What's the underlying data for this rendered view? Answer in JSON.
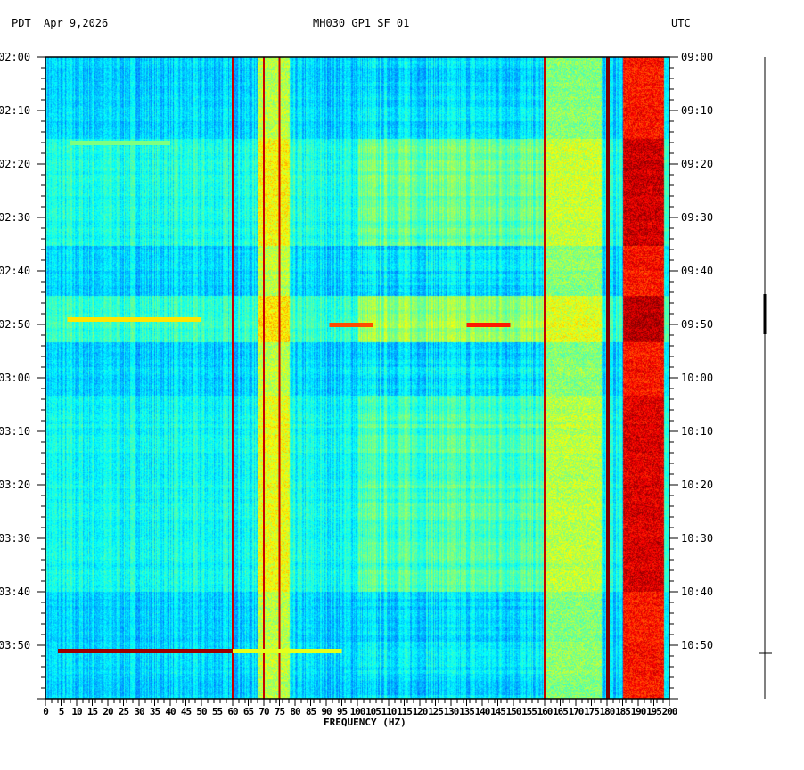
{
  "header": {
    "left_tz": "PDT",
    "date": "Apr 9,2026",
    "station": "MH030 GP1 SF 01",
    "right_tz": "UTC"
  },
  "chart_data": {
    "type": "heatmap",
    "title": "MH030 GP1 SF 01",
    "xlabel": "FREQUENCY (HZ)",
    "xlim": [
      0,
      200
    ],
    "x_ticks": [
      "0",
      "5",
      "10",
      "15",
      "20",
      "25",
      "30",
      "35",
      "40",
      "45",
      "50",
      "55",
      "60",
      "65",
      "70",
      "75",
      "80",
      "85",
      "90",
      "95",
      "100",
      "105",
      "110",
      "115",
      "120",
      "125",
      "130",
      "135",
      "140",
      "145",
      "150",
      "155",
      "160",
      "165",
      "170",
      "175",
      "180",
      "185",
      "190",
      "195",
      "200"
    ],
    "y_left_ticks": [
      "02:00",
      "02:10",
      "02:20",
      "02:30",
      "02:40",
      "02:50",
      "03:00",
      "03:10",
      "03:20",
      "03:30",
      "03:40",
      "03:50"
    ],
    "y_right_ticks": [
      "09:00",
      "09:10",
      "09:20",
      "09:30",
      "09:40",
      "09:50",
      "10:00",
      "10:10",
      "10:20",
      "10:30",
      "10:40",
      "10:50"
    ],
    "time_span_minutes": 120,
    "colormap": "jet",
    "persistent_lines_hz": [
      60,
      70,
      75,
      160,
      180
    ],
    "bands": [
      {
        "from_hz": 68,
        "to_hz": 78,
        "level": 0.55
      },
      {
        "from_hz": 160,
        "to_hz": 178,
        "level": 0.5
      },
      {
        "from_hz": 185,
        "to_hz": 198,
        "level": 0.85
      }
    ],
    "events": [
      {
        "minute": 16,
        "from_hz": 8,
        "to_hz": 40,
        "level": 0.5
      },
      {
        "minute": 49,
        "from_hz": 7,
        "to_hz": 50,
        "level": 0.65
      },
      {
        "minute": 50,
        "from_hz": 91,
        "to_hz": 105,
        "level": 0.8
      },
      {
        "minute": 50,
        "from_hz": 135,
        "to_hz": 149,
        "level": 0.85
      },
      {
        "minute": 111,
        "from_hz": 4,
        "to_hz": 60,
        "level": 0.97
      },
      {
        "minute": 111,
        "from_hz": 60,
        "to_hz": 95,
        "level": 0.6
      }
    ]
  },
  "colors": {
    "low": "#0000ff",
    "high": "#800000"
  }
}
